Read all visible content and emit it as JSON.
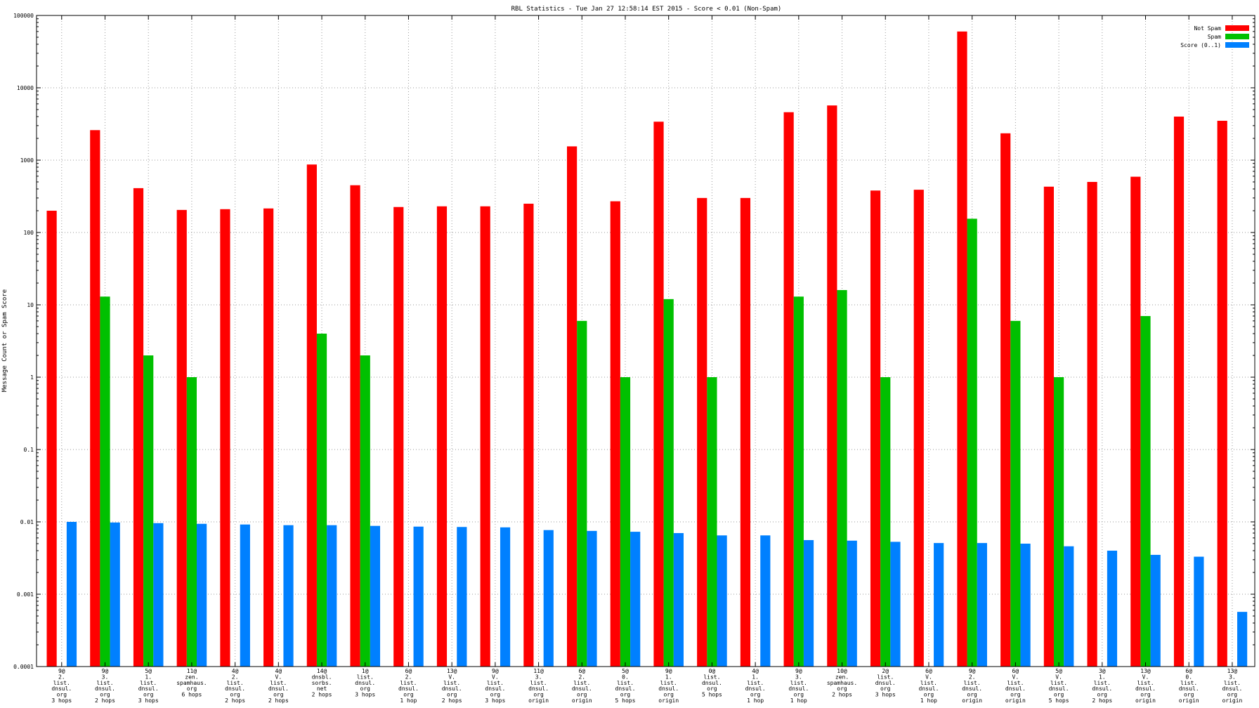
{
  "chart_data": {
    "type": "bar",
    "title": "RBL Statistics - Tue Jan 27 12:58:14 EST 2015 - Score < 0.01 (Non-Spam)",
    "xlabel": "",
    "ylabel": "Message Count or Spam Score",
    "y_scale": "log",
    "ylim": [
      0.0001,
      100000
    ],
    "y_ticks": [
      "0.0001",
      "0.001",
      "0.01",
      "0.1",
      "1",
      "10",
      "100",
      "1000",
      "10000",
      "100000"
    ],
    "grid": true,
    "legend_position": "top-right",
    "categories": [
      [
        "9@",
        "2.",
        "list.",
        "dnsul.",
        "org",
        "3 hops"
      ],
      [
        "9@",
        "3.",
        "list.",
        "dnsul.",
        "org",
        "2 hops"
      ],
      [
        "5@",
        "1.",
        "list.",
        "dnsul.",
        "org",
        "3 hops"
      ],
      [
        "11@",
        "zen.",
        "spamhaus.",
        "org",
        "6 hops"
      ],
      [
        "4@",
        "2.",
        "list.",
        "dnsul.",
        "org",
        "2 hops"
      ],
      [
        "4@",
        "V.",
        "list.",
        "dnsul.",
        "org",
        "2 hops"
      ],
      [
        "14@",
        "dnsbl.",
        "sorbs.",
        "net",
        "2 hops"
      ],
      [
        "1@",
        "list.",
        "dnsul.",
        "org",
        "3 hops"
      ],
      [
        "6@",
        "2.",
        "list.",
        "dnsul.",
        "org",
        "1 hop"
      ],
      [
        "13@",
        "V.",
        "list.",
        "dnsul.",
        "org",
        "2 hops"
      ],
      [
        "9@",
        "V.",
        "list.",
        "dnsul.",
        "org",
        "3 hops"
      ],
      [
        "11@",
        "3.",
        "list.",
        "dnsul.",
        "org",
        "origin"
      ],
      [
        "6@",
        "2.",
        "list.",
        "dnsul.",
        "org",
        "origin"
      ],
      [
        "5@",
        "0.",
        "list.",
        "dnsul.",
        "org",
        "5 hops"
      ],
      [
        "9@",
        "1.",
        "list.",
        "dnsul.",
        "org",
        "origin"
      ],
      [
        "0@",
        "list.",
        "dnsul.",
        "org",
        "5 hops"
      ],
      [
        "4@",
        "1.",
        "list.",
        "dnsul.",
        "org",
        "1 hop"
      ],
      [
        "9@",
        "3.",
        "list.",
        "dnsul.",
        "org",
        "1 hop"
      ],
      [
        "10@",
        "zen.",
        "spamhaus.",
        "org",
        "2 hops"
      ],
      [
        "2@",
        "list.",
        "dnsul.",
        "org",
        "3 hops"
      ],
      [
        "6@",
        "V.",
        "list.",
        "dnsul.",
        "org",
        "1 hop"
      ],
      [
        "9@",
        "2.",
        "list.",
        "dnsul.",
        "org",
        "origin"
      ],
      [
        "6@",
        "V.",
        "list.",
        "dnsul.",
        "org",
        "origin"
      ],
      [
        "5@",
        "V.",
        "list.",
        "dnsul.",
        "org",
        "5 hops"
      ],
      [
        "3@",
        "1.",
        "list.",
        "dnsul.",
        "org",
        "2 hops"
      ],
      [
        "13@",
        "V.",
        "list.",
        "dnsul.",
        "org",
        "origin"
      ],
      [
        "6@",
        "0.",
        "list.",
        "dnsul.",
        "org",
        "origin"
      ],
      [
        "13@",
        "3.",
        "list.",
        "dnsul.",
        "org",
        "origin"
      ]
    ],
    "series": [
      {
        "name": "Not Spam",
        "color": "#ff0000",
        "values": [
          200,
          2600,
          410,
          205,
          210,
          215,
          870,
          450,
          225,
          230,
          230,
          250,
          1550,
          270,
          3400,
          300,
          300,
          4600,
          5700,
          380,
          390,
          60000,
          2350,
          430,
          500,
          590,
          4000,
          3500
        ]
      },
      {
        "name": "Spam",
        "color": "#00c000",
        "values": [
          null,
          13,
          2,
          1,
          null,
          null,
          4,
          2,
          null,
          null,
          null,
          null,
          6,
          1,
          12,
          1,
          null,
          13,
          16,
          1,
          null,
          155,
          6,
          1,
          null,
          7,
          null,
          null
        ]
      },
      {
        "name": "Score (0..1)",
        "color": "#0080ff",
        "values": [
          0.01,
          0.0098,
          0.0096,
          0.0094,
          0.0092,
          0.009,
          0.009,
          0.0088,
          0.0086,
          0.0085,
          0.0084,
          0.0077,
          0.0075,
          0.0073,
          0.007,
          0.0065,
          0.0065,
          0.0056,
          0.0055,
          0.0053,
          0.0051,
          0.0051,
          0.005,
          0.0046,
          0.004,
          0.0035,
          0.0033,
          0.00057
        ]
      }
    ]
  }
}
